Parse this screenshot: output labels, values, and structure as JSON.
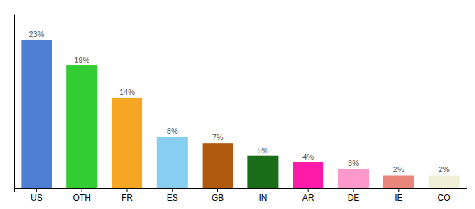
{
  "chart_data": {
    "type": "bar",
    "categories": [
      "US",
      "OTH",
      "FR",
      "ES",
      "GB",
      "IN",
      "AR",
      "DE",
      "IE",
      "CO"
    ],
    "values": [
      23,
      19,
      14,
      8,
      7,
      5,
      4,
      3,
      2,
      2
    ],
    "value_labels": [
      "23%",
      "19%",
      "14%",
      "8%",
      "7%",
      "5%",
      "4%",
      "3%",
      "2%",
      "2%"
    ],
    "colors": [
      "#4d7ed4",
      "#33cc33",
      "#f5a623",
      "#87cef0",
      "#b05a10",
      "#1a6e1a",
      "#ff1aaa",
      "#ff99cc",
      "#e8867c",
      "#f0f0d8"
    ],
    "ylim": [
      0,
      27
    ],
    "data_labels": true,
    "tick_labels": "x"
  }
}
